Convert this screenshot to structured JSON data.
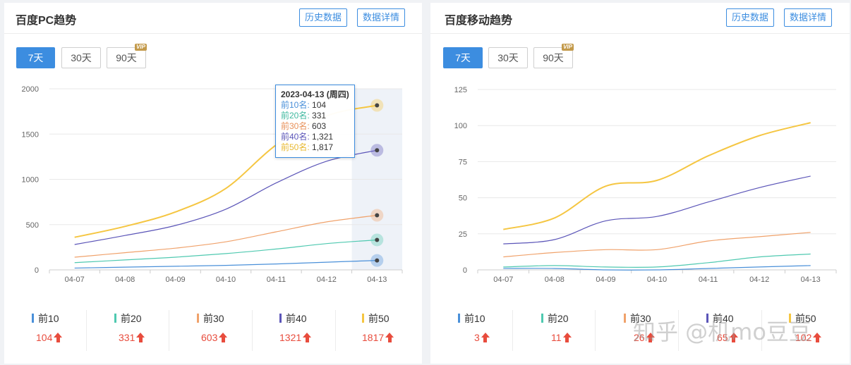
{
  "tabs": [
    "7天",
    "30天",
    "90天"
  ],
  "vip_badge": "VIP",
  "watermark": "知乎 @机mo豆豆",
  "panels": [
    {
      "title": "百度PC趋势",
      "buttons": [
        "历史数据",
        "数据详情"
      ],
      "tooltip": {
        "date": "2023-04-13 (周四)",
        "rows": [
          {
            "label": "前10名",
            "sep": ":",
            "value": "104"
          },
          {
            "label": "前20名",
            "sep": ":",
            "value": "331"
          },
          {
            "label": "前30名",
            "sep": ":",
            "value": "603"
          },
          {
            "label": "前40名",
            "sep": ":",
            "value": "1,321"
          },
          {
            "label": "前50名",
            "sep": ":",
            "value": "1,817"
          }
        ]
      },
      "stats": [
        {
          "label": "前10",
          "value": "104"
        },
        {
          "label": "前20",
          "value": "331"
        },
        {
          "label": "前30",
          "value": "603"
        },
        {
          "label": "前40",
          "value": "1321"
        },
        {
          "label": "前50",
          "value": "1817"
        }
      ]
    },
    {
      "title": "百度移动趋势",
      "buttons": [
        "历史数据",
        "数据详情"
      ],
      "stats": [
        {
          "label": "前10",
          "value": "3"
        },
        {
          "label": "前20",
          "value": "11"
        },
        {
          "label": "前30",
          "value": "26"
        },
        {
          "label": "前40",
          "value": "65"
        },
        {
          "label": "前50",
          "value": "102"
        }
      ]
    }
  ],
  "colors": {
    "top10": "#4a90d9",
    "top20": "#4fc9b0",
    "top30": "#f0a26b",
    "top40": "#5b55b8",
    "top50": "#f5c642",
    "accent": "#3c8de0",
    "up": "#e84c3d"
  },
  "chart_data": [
    {
      "type": "line",
      "x": [
        "04-07",
        "04-08",
        "04-09",
        "04-10",
        "04-11",
        "04-12",
        "04-13"
      ],
      "yticks": [
        "0",
        "500",
        "1000",
        "1500",
        "2000"
      ],
      "ylim": [
        0,
        2000
      ],
      "highlight": "04-13",
      "series": [
        {
          "name": "前10",
          "color": "#4a90d9",
          "values": [
            20,
            30,
            40,
            50,
            65,
            85,
            104
          ]
        },
        {
          "name": "前20",
          "color": "#4fc9b0",
          "values": [
            80,
            110,
            140,
            180,
            230,
            290,
            331
          ]
        },
        {
          "name": "前30",
          "color": "#f0a26b",
          "values": [
            140,
            190,
            240,
            310,
            420,
            530,
            603
          ]
        },
        {
          "name": "前40",
          "color": "#5b55b8",
          "values": [
            280,
            380,
            490,
            670,
            960,
            1200,
            1321
          ]
        },
        {
          "name": "前50",
          "color": "#f5c642",
          "values": [
            360,
            480,
            640,
            900,
            1380,
            1700,
            1817
          ]
        }
      ]
    },
    {
      "type": "line",
      "x": [
        "04-07",
        "04-08",
        "04-09",
        "04-10",
        "04-11",
        "04-12",
        "04-13"
      ],
      "yticks": [
        "0",
        "25",
        "50",
        "75",
        "100",
        "125"
      ],
      "ylim": [
        0,
        125
      ],
      "series": [
        {
          "name": "前10",
          "color": "#4a90d9",
          "values": [
            1,
            1,
            0,
            0,
            1,
            2,
            3
          ]
        },
        {
          "name": "前20",
          "color": "#4fc9b0",
          "values": [
            2,
            3,
            2,
            2,
            5,
            9,
            11
          ]
        },
        {
          "name": "前30",
          "color": "#f0a26b",
          "values": [
            9,
            12,
            14,
            14,
            20,
            23,
            26
          ]
        },
        {
          "name": "前40",
          "color": "#5b55b8",
          "values": [
            18,
            21,
            34,
            37,
            47,
            57,
            65
          ]
        },
        {
          "name": "前50",
          "color": "#f5c642",
          "values": [
            28,
            36,
            58,
            62,
            79,
            93,
            102
          ]
        }
      ]
    }
  ]
}
